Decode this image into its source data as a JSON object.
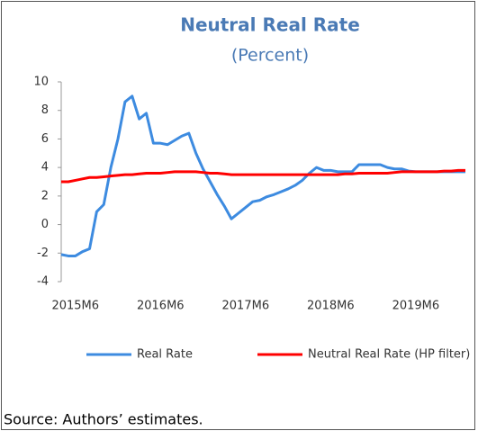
{
  "chart_data": {
    "type": "line",
    "title": "Neutral Real Rate",
    "subtitle": "(Percent)",
    "source": "Source: Authors’ estimates.",
    "categories": [
      null,
      null,
      "2015M6",
      null,
      null,
      null,
      null,
      null,
      null,
      null,
      null,
      null,
      null,
      null,
      "2016M6",
      null,
      null,
      null,
      null,
      null,
      null,
      null,
      null,
      null,
      null,
      null,
      "2017M6",
      null,
      null,
      null,
      null,
      null,
      null,
      null,
      null,
      null,
      null,
      null,
      "2018M6",
      null,
      null,
      null,
      null,
      null,
      null,
      null,
      null,
      null,
      null,
      null,
      "2019M6",
      null,
      null,
      null,
      null,
      null,
      null,
      null
    ],
    "series": [
      {
        "name": "Real Rate",
        "color": "#3d8be0",
        "values": [
          -2.1,
          -2.2,
          -2.2,
          -1.9,
          -1.7,
          0.9,
          1.4,
          4.0,
          6.0,
          8.6,
          9.0,
          7.4,
          7.8,
          5.7,
          5.7,
          5.6,
          5.9,
          6.2,
          6.4,
          5.0,
          3.9,
          3.0,
          2.1,
          1.3,
          0.4,
          0.8,
          1.2,
          1.6,
          1.7,
          1.95,
          2.1,
          2.3,
          2.5,
          2.75,
          3.1,
          3.6,
          4.0,
          3.8,
          3.8,
          3.7,
          3.7,
          3.7,
          4.2,
          4.2,
          4.2,
          4.2,
          4.0,
          3.9,
          3.9,
          3.75,
          3.7,
          3.7,
          3.7,
          3.7,
          3.7,
          3.7,
          3.7,
          3.7
        ]
      },
      {
        "name": "Neutral Real Rate (HP filter)",
        "color": "#ff0000",
        "values": [
          3.0,
          3.0,
          3.1,
          3.2,
          3.3,
          3.3,
          3.35,
          3.4,
          3.45,
          3.5,
          3.5,
          3.55,
          3.6,
          3.6,
          3.6,
          3.65,
          3.7,
          3.7,
          3.7,
          3.7,
          3.65,
          3.6,
          3.6,
          3.55,
          3.5,
          3.5,
          3.5,
          3.5,
          3.5,
          3.5,
          3.5,
          3.5,
          3.5,
          3.5,
          3.5,
          3.5,
          3.5,
          3.5,
          3.5,
          3.5,
          3.55,
          3.55,
          3.6,
          3.6,
          3.6,
          3.6,
          3.6,
          3.65,
          3.7,
          3.7,
          3.7,
          3.7,
          3.7,
          3.7,
          3.75,
          3.75,
          3.8,
          3.8
        ]
      }
    ],
    "ylim": [
      -4,
      10
    ],
    "yticks": [
      -4,
      -2,
      0,
      2,
      4,
      6,
      8,
      10
    ]
  }
}
